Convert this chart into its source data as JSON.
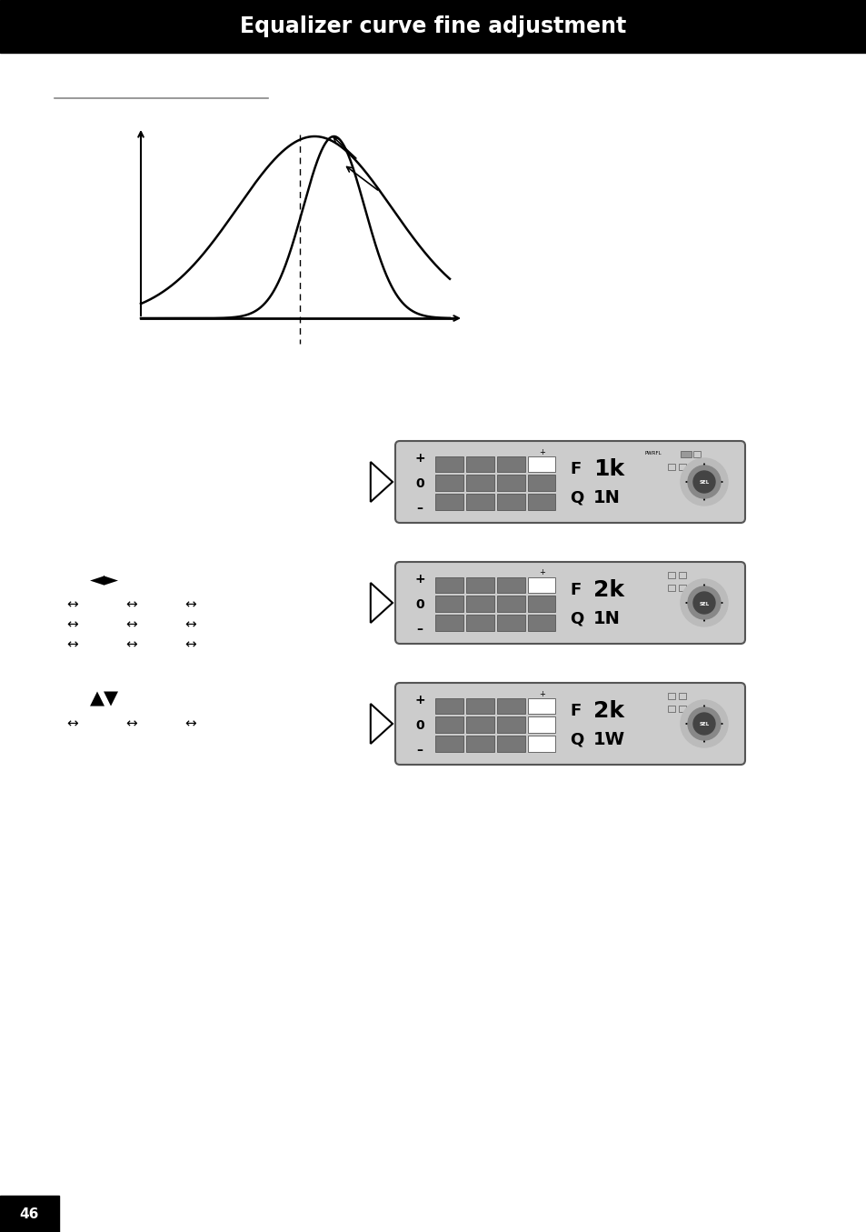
{
  "title_text": "Equalizer curve fine adjustment",
  "title_bg": "#000000",
  "title_fg": "#ffffff",
  "page_bg": "#ffffff",
  "panel1_F": "1k",
  "panel1_Q": "1N",
  "panel2_F": "2k",
  "panel2_Q": "1N",
  "panel3_F": "2k",
  "panel3_Q": "1W",
  "panel_bg": "#cccccc",
  "panel_border": "#555555",
  "cell_gray": "#777777",
  "cell_white": "#ffffff",
  "cell_border": "#555555"
}
